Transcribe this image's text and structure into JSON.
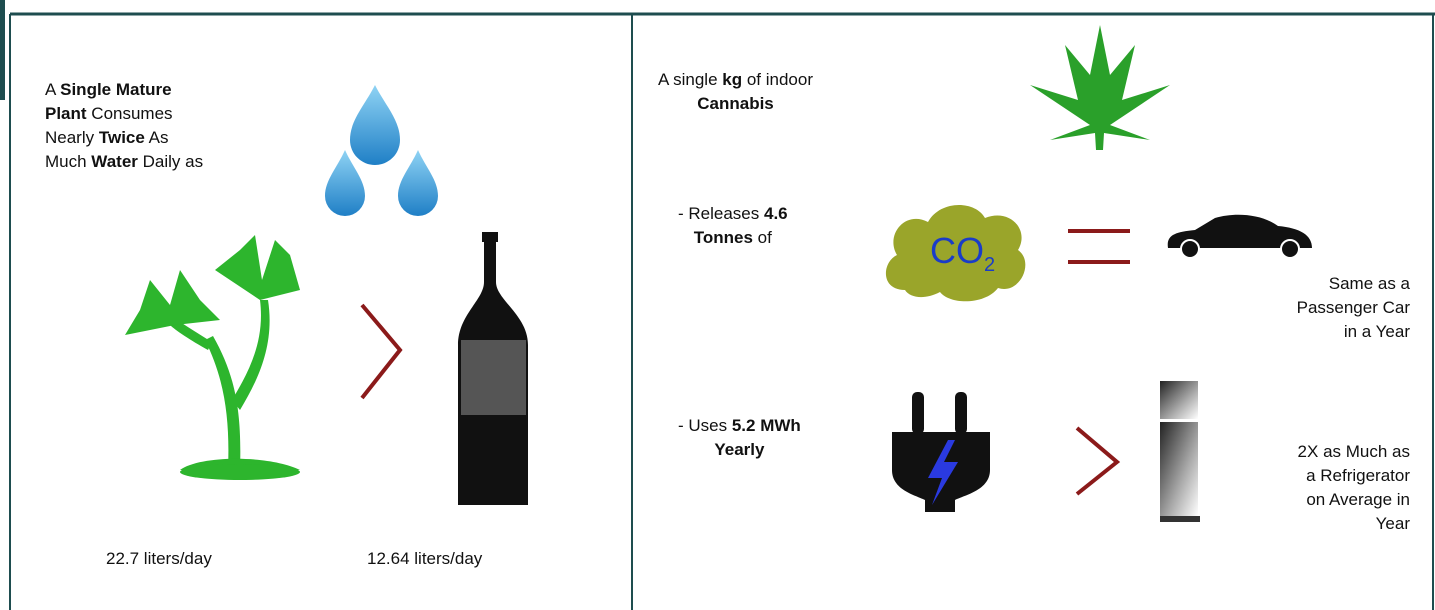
{
  "left": {
    "intro": [
      [
        {
          "text": "A ",
          "bold": false
        },
        {
          "text": "Single Mature",
          "bold": true
        }
      ],
      [
        {
          "text": "Plant",
          "bold": true
        },
        {
          "text": " Consumes",
          "bold": false
        }
      ],
      [
        {
          "text": "Nearly ",
          "bold": false
        },
        {
          "text": "Twice",
          "bold": true
        },
        {
          "text": " As",
          "bold": false
        }
      ],
      [
        {
          "text": "Much ",
          "bold": false
        },
        {
          "text": "Water",
          "bold": true
        },
        {
          "text": " Daily as",
          "bold": false
        }
      ]
    ],
    "plant_label": "22.7 liters/day",
    "bottle_label": "12.64 liters/day"
  },
  "right": {
    "intro": [
      [
        {
          "text": "A single ",
          "bold": false
        },
        {
          "text": "kg",
          "bold": true
        },
        {
          "text": " of indoor",
          "bold": false
        }
      ],
      [
        {
          "text": "Cannabis",
          "bold": true
        }
      ]
    ],
    "co2_line": [
      [
        {
          "text": "- Releases ",
          "bold": false
        },
        {
          "text": "4.6",
          "bold": true
        }
      ],
      [
        {
          "text": "Tonnes",
          "bold": true
        },
        {
          "text": " of",
          "bold": false
        }
      ]
    ],
    "co2": {
      "main": "CO",
      "sub": "2"
    },
    "car_caption": [
      "Same as a",
      "Passenger Car",
      "in a Year"
    ],
    "energy_line": [
      [
        {
          "text": "- Uses ",
          "bold": false
        },
        {
          "text": "5.2 MWh",
          "bold": true
        }
      ],
      [
        {
          "text": "Yearly",
          "bold": true
        }
      ]
    ],
    "fridge_caption": [
      "2X as Much as",
      "a Refrigerator",
      "on Average in",
      "Year"
    ]
  }
}
